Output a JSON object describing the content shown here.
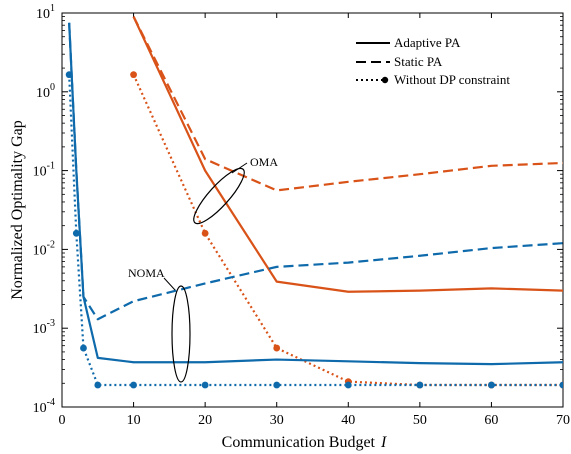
{
  "chart_data": {
    "type": "line",
    "xlabel": "Communication Budget",
    "xlabel_symbol": "I",
    "ylabel": "Normalized Optimality Gap",
    "xlim": [
      0,
      70
    ],
    "ylim": [
      0.0001,
      10
    ],
    "yscale": "log",
    "x_ticks": [
      0,
      10,
      20,
      30,
      40,
      50,
      60,
      70
    ],
    "y_ticks": [
      {
        "value": 0.0001,
        "base": "10",
        "exp": "-4"
      },
      {
        "value": 0.001,
        "base": "10",
        "exp": "-3"
      },
      {
        "value": 0.01,
        "base": "10",
        "exp": "-2"
      },
      {
        "value": 0.1,
        "base": "10",
        "exp": "-1"
      },
      {
        "value": 1,
        "base": "10",
        "exp": "0"
      },
      {
        "value": 10,
        "base": "10",
        "exp": "1"
      }
    ],
    "grid": false,
    "legend_position": "top-right",
    "legend": [
      {
        "label": "Adaptive PA",
        "style": "solid"
      },
      {
        "label": "Static PA",
        "style": "dashed"
      },
      {
        "label": "Without DP constraint",
        "style": "dotted-marker"
      }
    ],
    "annotations": [
      {
        "text": "OMA"
      },
      {
        "text": "NOMA"
      }
    ],
    "colors": {
      "oma": "#d95319",
      "noma": "#0e6aab"
    },
    "series": [
      {
        "group": "OMA",
        "style": "solid",
        "x": [
          10,
          20,
          30,
          40,
          50,
          60,
          70
        ],
        "y": [
          9.0,
          0.1,
          0.0039,
          0.0029,
          0.003,
          0.0032,
          0.003
        ]
      },
      {
        "group": "OMA",
        "style": "dashed",
        "x": [
          10,
          20,
          30,
          40,
          50,
          60,
          70
        ],
        "y": [
          9.0,
          0.14,
          0.056,
          0.072,
          0.09,
          0.115,
          0.125
        ]
      },
      {
        "group": "OMA",
        "style": "dotted-marker",
        "x": [
          10,
          20,
          30,
          40,
          50,
          60,
          70
        ],
        "y": [
          1.65,
          0.016,
          0.00056,
          0.00021,
          0.00019,
          0.00019,
          0.00019
        ]
      },
      {
        "group": "NOMA",
        "style": "solid",
        "x": [
          1,
          2,
          3,
          5,
          10,
          20,
          30,
          40,
          50,
          60,
          70
        ],
        "y": [
          7.5,
          0.1,
          0.0025,
          0.00042,
          0.00037,
          0.00037,
          0.0004,
          0.00038,
          0.00036,
          0.00035,
          0.00037
        ]
      },
      {
        "group": "NOMA",
        "style": "dashed",
        "x": [
          1,
          2,
          3,
          5,
          10,
          20,
          30,
          40,
          50,
          60,
          70
        ],
        "y": [
          7.5,
          0.1,
          0.0025,
          0.0013,
          0.0022,
          0.0037,
          0.006,
          0.0068,
          0.0083,
          0.0104,
          0.012
        ]
      },
      {
        "group": "NOMA",
        "style": "dotted-marker",
        "x": [
          1,
          2,
          3,
          5,
          10,
          20,
          30,
          40,
          50,
          60,
          70
        ],
        "y": [
          1.65,
          0.016,
          0.00056,
          0.00019,
          0.00019,
          0.00019,
          0.00019,
          0.00019,
          0.00019,
          0.00019,
          0.00019
        ]
      }
    ]
  }
}
